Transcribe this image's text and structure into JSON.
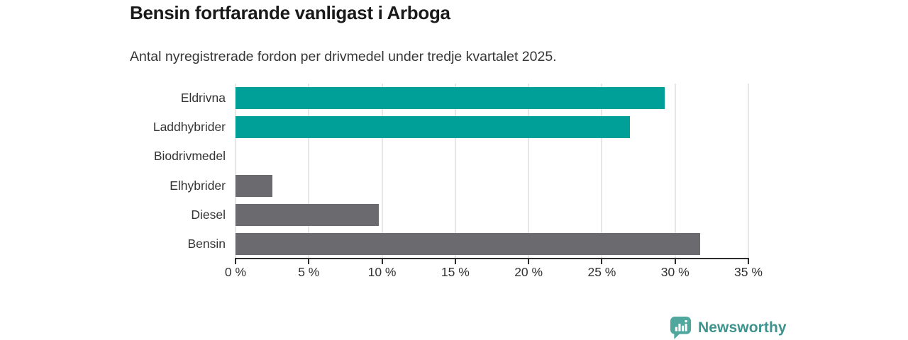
{
  "header": {
    "title": "Bensin fortfarande vanligast i Arboga",
    "subtitle": "Antal nyregistrerade fordon per drivmedel under tredje kvartalet 2025."
  },
  "chart_data": {
    "type": "bar",
    "orientation": "horizontal",
    "title": "Bensin fortfarande vanligast i Arboga",
    "subtitle": "Antal nyregistrerade fordon per drivmedel under tredje kvartalet 2025.",
    "categories": [
      "Eldrivna",
      "Laddhybrider",
      "Biodrivmedel",
      "Elhybrider",
      "Diesel",
      "Bensin"
    ],
    "values": [
      29.3,
      26.9,
      0,
      2.5,
      9.8,
      31.7
    ],
    "unit": "%",
    "bar_colors": [
      "#00a099",
      "#00a099",
      "#00a099",
      "#6a6a6f",
      "#6a6a6f",
      "#6a6a6f"
    ],
    "xlabel": "",
    "ylabel": "",
    "xlim": [
      0,
      35
    ],
    "x_ticks": [
      0,
      5,
      10,
      15,
      20,
      25,
      30,
      35
    ],
    "x_tick_labels": [
      "0 %",
      "5 %",
      "10 %",
      "15 %",
      "20 %",
      "25 %",
      "30 %",
      "35 %"
    ],
    "grid": "vertical-only",
    "legend": "none",
    "value_labels_shown": false
  },
  "colors": {
    "teal": "#00a099",
    "gray": "#6a6a6f",
    "axis": "#2e2e2e",
    "gridline": "#e7e7e7",
    "tick_text": "#333333",
    "title_text": "#1a1a1a"
  },
  "footer": {
    "brand": "Newsworthy",
    "brand_text_color": "#3d938d",
    "logo_icon": "bar-chart-speech-bubble-icon",
    "logo_icon_color": "#4fa79e"
  }
}
